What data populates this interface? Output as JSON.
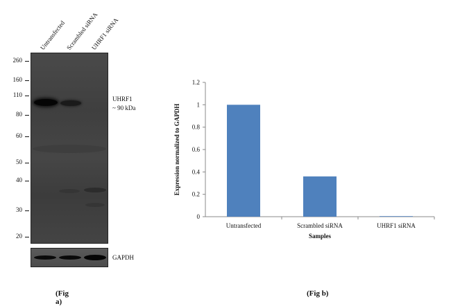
{
  "fig_a": {
    "lanes": [
      "Untransfected",
      "Scrambled siRNA",
      "UHRF1 siRNA"
    ],
    "mw_markers": [
      "260",
      "160",
      "110",
      "80",
      "60",
      "50",
      "40",
      "30",
      "20"
    ],
    "target_label": "UHRF1",
    "target_size": "~ 90 kDa",
    "loading_label": "GAPDH",
    "caption": "(Fig a)"
  },
  "fig_b": {
    "caption": "(Fig b)"
  },
  "chart_data": {
    "type": "bar",
    "categories": [
      "Untransfected",
      "Scrambled siRNA",
      "UHRF1 siRNA"
    ],
    "values": [
      1.0,
      0.36,
      0.005
    ],
    "xlabel": "Samples",
    "ylabel": "Expression normalized to GAPDH",
    "ylim": [
      0,
      1.2
    ],
    "yticks": [
      "0",
      "0.2",
      "0.4",
      "0.6",
      "0.8",
      "1",
      "1.2"
    ],
    "grid": false,
    "bar_color": "#4f81bd"
  }
}
